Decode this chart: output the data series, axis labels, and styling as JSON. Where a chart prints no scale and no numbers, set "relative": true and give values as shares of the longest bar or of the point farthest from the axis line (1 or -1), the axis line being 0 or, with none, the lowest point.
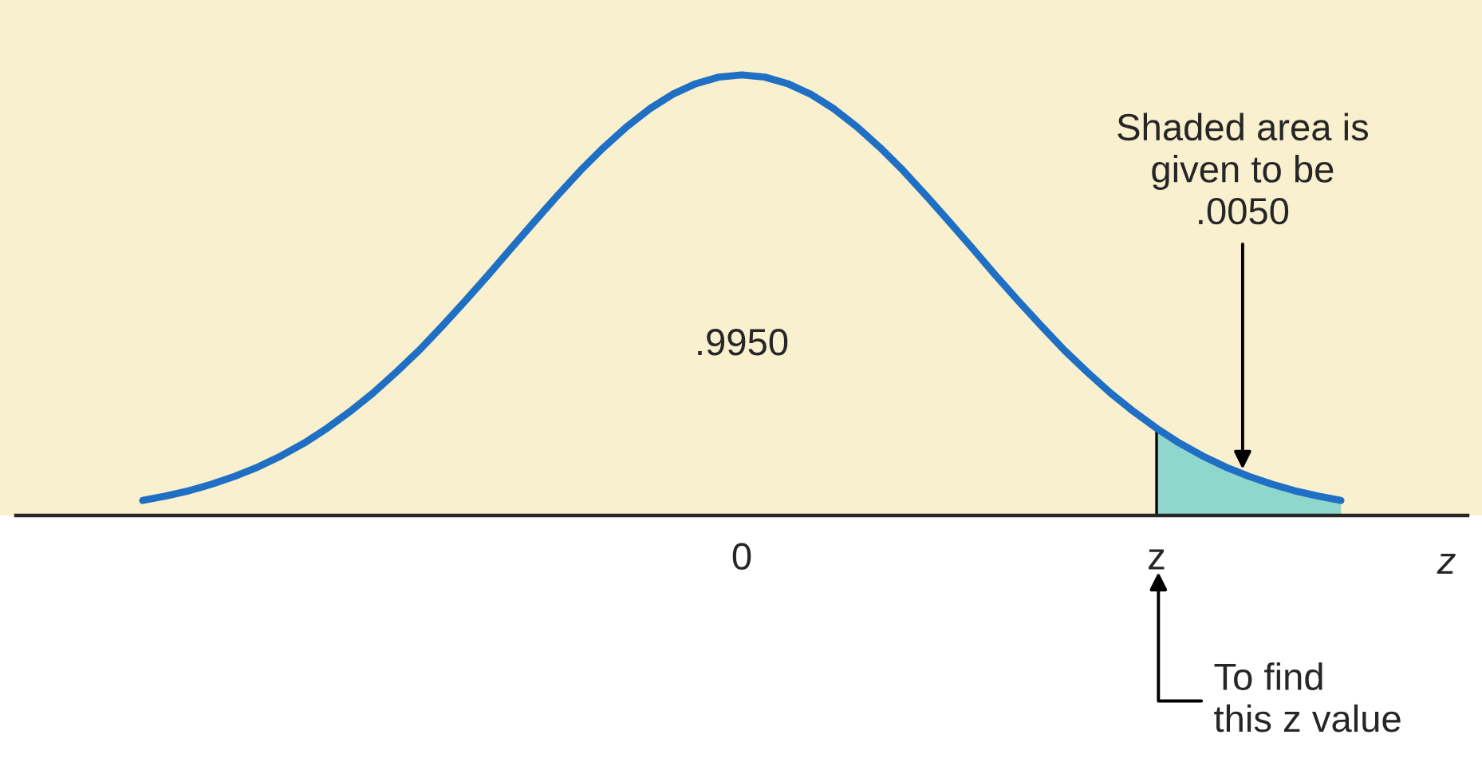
{
  "chart_data": {
    "type": "line",
    "relative": true,
    "tick_labels": "x",
    "xlabel": "z",
    "categories": [
      null,
      null,
      null,
      null,
      null,
      null,
      null,
      null,
      null,
      null,
      null,
      null,
      null,
      null,
      null,
      null,
      null,
      null,
      null,
      null,
      null,
      null,
      null,
      null,
      null,
      null,
      "0",
      null,
      null,
      null,
      null,
      null,
      null,
      null,
      null,
      null,
      null,
      null,
      null,
      null,
      null,
      null,
      null,
      null,
      "z",
      null,
      null,
      null,
      null,
      null,
      null,
      null,
      null
    ],
    "series": [
      {
        "color": "#1f6fc4",
        "values": [
          0.034,
          0.044,
          0.056,
          0.071,
          0.089,
          0.11,
          0.135,
          0.164,
          0.198,
          0.236,
          0.278,
          0.325,
          0.375,
          0.43,
          0.487,
          0.546,
          0.607,
          0.667,
          0.726,
          0.783,
          0.835,
          0.882,
          0.923,
          0.956,
          0.98,
          0.995,
          1.0,
          0.995,
          0.98,
          0.956,
          0.923,
          0.882,
          0.835,
          0.783,
          0.726,
          0.667,
          0.607,
          0.546,
          0.487,
          0.43,
          0.375,
          0.325,
          0.278,
          0.236,
          0.198,
          0.164,
          0.135,
          0.11,
          0.089,
          0.071,
          0.056,
          0.044,
          0.034
        ]
      },
      {
        "type": "area",
        "color": "#8fd6cc",
        "values": [
          null,
          null,
          null,
          null,
          null,
          null,
          null,
          null,
          null,
          null,
          null,
          null,
          null,
          null,
          null,
          null,
          null,
          null,
          null,
          null,
          null,
          null,
          null,
          null,
          null,
          null,
          null,
          null,
          null,
          null,
          null,
          null,
          null,
          null,
          null,
          null,
          null,
          null,
          null,
          null,
          null,
          null,
          null,
          null,
          0.198,
          0.164,
          0.135,
          0.11,
          0.089,
          0.071,
          0.056,
          0.044,
          0.034
        ]
      }
    ],
    "annotations": [
      ".9950",
      "Shaded area is\ngiven to be\n.0050",
      "To find\nthis z value"
    ]
  }
}
